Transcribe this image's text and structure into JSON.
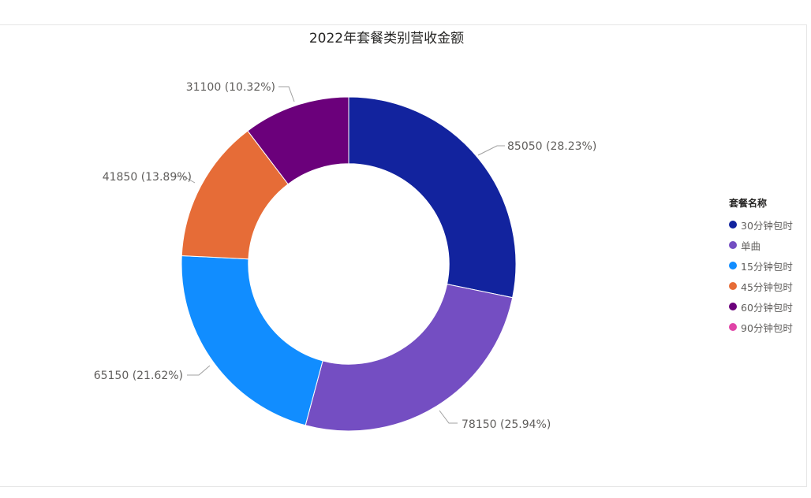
{
  "chart_data": {
    "type": "pie",
    "title": "2022年套餐类别营收金额",
    "legend_title": "套餐名称",
    "legend_position": "right",
    "inner_radius_ratio": 0.4,
    "slices": [
      {
        "name": "30分钟包时",
        "value": 85050,
        "label": "85050 (28.23%)",
        "color": "#12239e"
      },
      {
        "name": "单曲",
        "value": 78150,
        "label": "78150 (25.94%)",
        "color": "#744ec2"
      },
      {
        "name": "15分钟包时",
        "value": 65150,
        "label": "65150 (21.62%)",
        "color": "#118dff"
      },
      {
        "name": "45分钟包时",
        "value": 41850,
        "label": "41850 (13.89%)",
        "color": "#e66c37"
      },
      {
        "name": "60分钟包时",
        "value": 31100,
        "label": "31100 (10.32%)",
        "color": "#6b007b"
      },
      {
        "name": "90分钟包时",
        "value": 0,
        "label": "",
        "color": "#e044a7"
      }
    ]
  }
}
